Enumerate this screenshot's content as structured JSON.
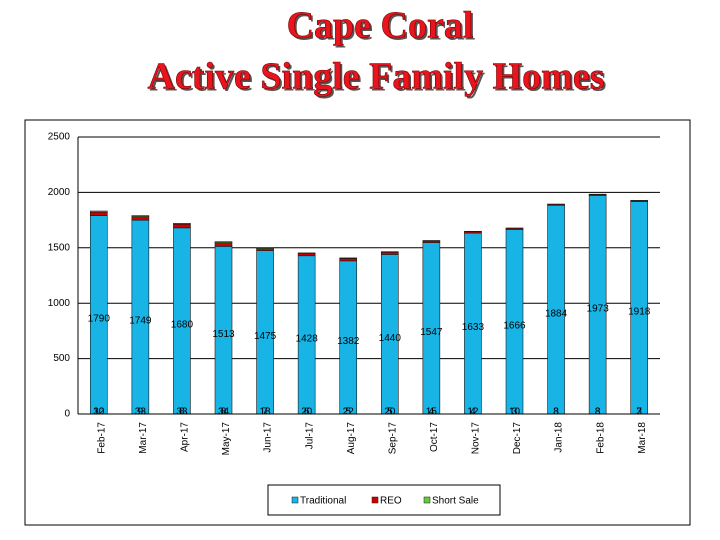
{
  "chart_data": {
    "type": "stacked_bar",
    "title": [
      "Cape Coral",
      "Active Single Family Homes"
    ],
    "categories": [
      "Feb-17",
      "Mar-17",
      "Apr-17",
      "May-17",
      "Jun-17",
      "Jul-17",
      "Aug-17",
      "Sep-17",
      "Oct-17",
      "Nov-17",
      "Dec-17",
      "Jan-18",
      "Feb-18",
      "Mar-18"
    ],
    "series": [
      {
        "name": "Traditional",
        "color": "#18b4e6",
        "values": [
          1790,
          1749,
          1680,
          1513,
          1475,
          1428,
          1382,
          1440,
          1547,
          1633,
          1666,
          1884,
          1973,
          1918
        ]
      },
      {
        "name": "REO",
        "color": "#cc0000",
        "values": [
          32,
          33,
          33,
          34,
          18,
          20,
          22,
          20,
          15,
          12,
          10,
          8,
          8,
          7
        ]
      },
      {
        "name": "Short Sale",
        "color": "#66cc33",
        "values": [
          10,
          9,
          8,
          8,
          7,
          6,
          5,
          5,
          4,
          4,
          3,
          3,
          3,
          3
        ]
      }
    ],
    "ylim": [
      0,
      2500
    ],
    "yticks": [
      0,
      500,
      1000,
      1500,
      2000,
      2500
    ],
    "grid": true,
    "legend": "bottom"
  }
}
